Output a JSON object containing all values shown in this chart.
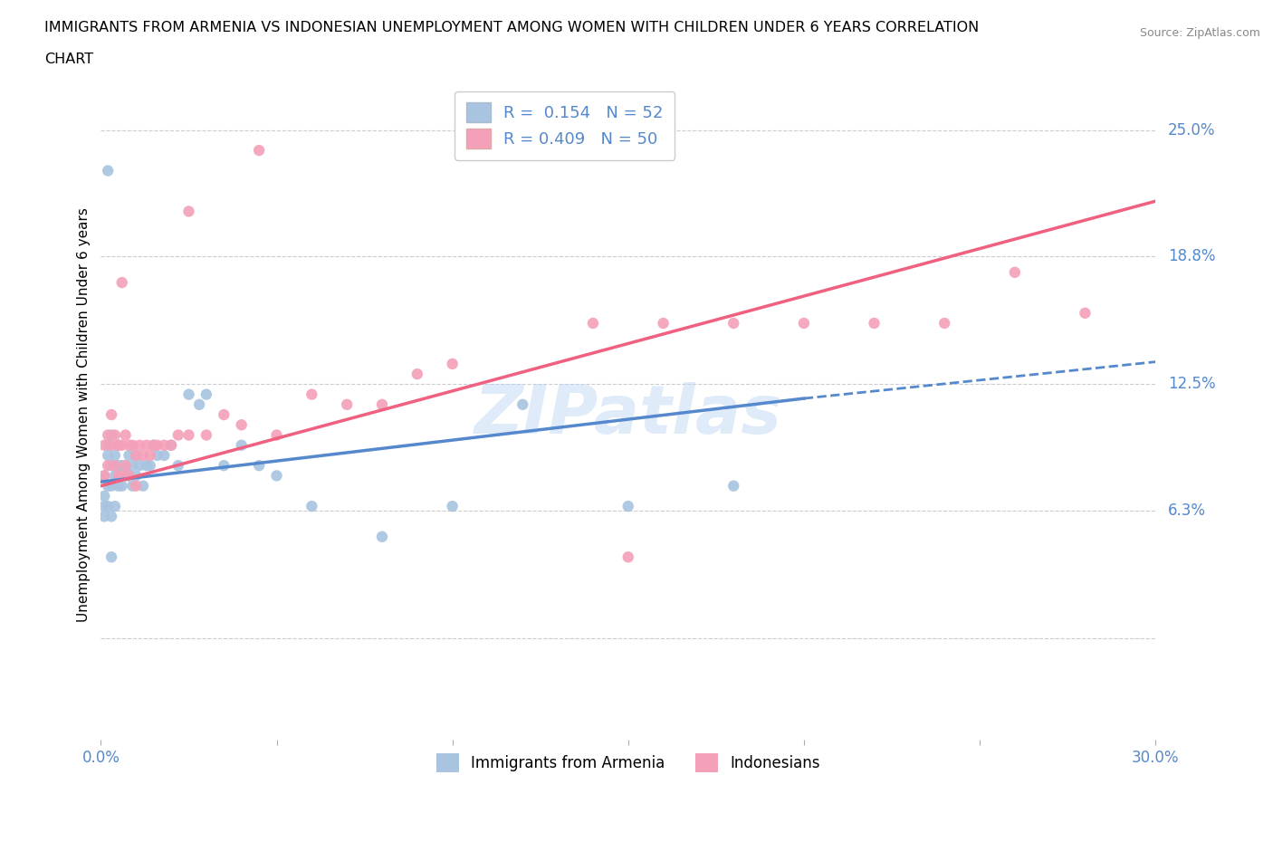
{
  "title_line1": "IMMIGRANTS FROM ARMENIA VS INDONESIAN UNEMPLOYMENT AMONG WOMEN WITH CHILDREN UNDER 6 YEARS CORRELATION",
  "title_line2": "CHART",
  "source": "Source: ZipAtlas.com",
  "ylabel": "Unemployment Among Women with Children Under 6 years",
  "xlim": [
    0.0,
    0.3
  ],
  "ylim": [
    -0.05,
    0.27
  ],
  "ytick_values": [
    0.0,
    0.063,
    0.125,
    0.188,
    0.25
  ],
  "ytick_labels": [
    "",
    "6.3%",
    "12.5%",
    "18.8%",
    "25.0%"
  ],
  "grid_color": "#cccccc",
  "background_color": "#ffffff",
  "legend_R1": "0.154",
  "legend_N1": "52",
  "legend_R2": "0.409",
  "legend_N2": "50",
  "armenia_color": "#a8c4e0",
  "indonesia_color": "#f4a0b8",
  "armenia_line_color": "#5588cc",
  "indonesia_line_color": "#f06080",
  "label_color": "#5588cc",
  "armenia_line_x0": 0.0,
  "armenia_line_y0": 0.077,
  "armenia_line_x1": 0.2,
  "armenia_line_y1": 0.118,
  "armenia_line_x1_dash": 0.3,
  "armenia_line_y1_dash": 0.136,
  "indonesia_line_x0": 0.0,
  "indonesia_line_y0": 0.075,
  "indonesia_line_x1": 0.3,
  "indonesia_line_y1": 0.215,
  "armenia_x": [
    0.001,
    0.001,
    0.001,
    0.001,
    0.002,
    0.002,
    0.002,
    0.002,
    0.003,
    0.003,
    0.003,
    0.003,
    0.004,
    0.004,
    0.004,
    0.005,
    0.005,
    0.005,
    0.006,
    0.006,
    0.007,
    0.007,
    0.008,
    0.008,
    0.009,
    0.009,
    0.01,
    0.01,
    0.011,
    0.012,
    0.013,
    0.014,
    0.015,
    0.016,
    0.018,
    0.02,
    0.022,
    0.025,
    0.028,
    0.03,
    0.035,
    0.04,
    0.045,
    0.05,
    0.06,
    0.08,
    0.1,
    0.12,
    0.15,
    0.18,
    0.002,
    0.003
  ],
  "armenia_y": [
    0.08,
    0.07,
    0.065,
    0.06,
    0.095,
    0.09,
    0.075,
    0.065,
    0.1,
    0.085,
    0.075,
    0.06,
    0.09,
    0.08,
    0.065,
    0.095,
    0.085,
    0.075,
    0.085,
    0.075,
    0.085,
    0.08,
    0.09,
    0.08,
    0.085,
    0.075,
    0.09,
    0.08,
    0.085,
    0.075,
    0.085,
    0.085,
    0.095,
    0.09,
    0.09,
    0.095,
    0.085,
    0.12,
    0.115,
    0.12,
    0.085,
    0.095,
    0.085,
    0.08,
    0.065,
    0.05,
    0.065,
    0.115,
    0.065,
    0.075,
    0.23,
    0.04
  ],
  "indonesia_x": [
    0.001,
    0.001,
    0.002,
    0.002,
    0.003,
    0.003,
    0.004,
    0.004,
    0.005,
    0.005,
    0.006,
    0.006,
    0.007,
    0.007,
    0.008,
    0.008,
    0.009,
    0.01,
    0.01,
    0.011,
    0.012,
    0.013,
    0.014,
    0.015,
    0.016,
    0.018,
    0.02,
    0.022,
    0.025,
    0.03,
    0.035,
    0.04,
    0.05,
    0.06,
    0.07,
    0.08,
    0.09,
    0.1,
    0.14,
    0.16,
    0.18,
    0.2,
    0.22,
    0.24,
    0.26,
    0.28,
    0.006,
    0.025,
    0.045,
    0.15
  ],
  "indonesia_y": [
    0.095,
    0.08,
    0.1,
    0.085,
    0.11,
    0.095,
    0.1,
    0.085,
    0.095,
    0.08,
    0.095,
    0.08,
    0.1,
    0.085,
    0.095,
    0.08,
    0.095,
    0.09,
    0.075,
    0.095,
    0.09,
    0.095,
    0.09,
    0.095,
    0.095,
    0.095,
    0.095,
    0.1,
    0.1,
    0.1,
    0.11,
    0.105,
    0.1,
    0.12,
    0.115,
    0.115,
    0.13,
    0.135,
    0.155,
    0.155,
    0.155,
    0.155,
    0.155,
    0.155,
    0.18,
    0.16,
    0.175,
    0.21,
    0.24,
    0.04
  ]
}
